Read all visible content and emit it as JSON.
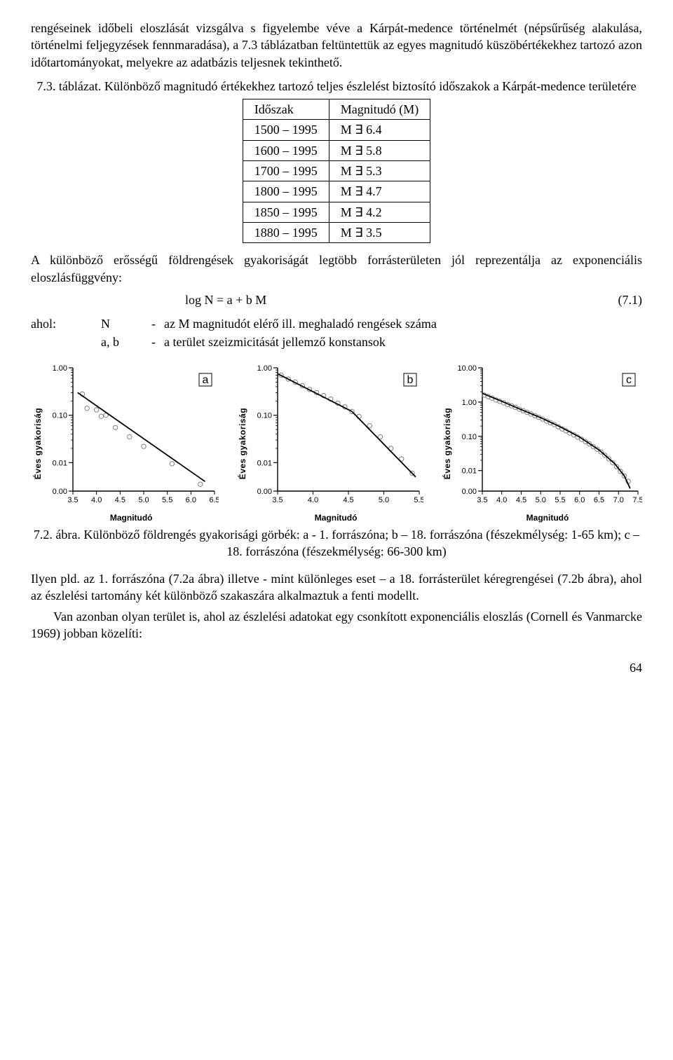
{
  "para1": "rengéseinek időbeli eloszlását vizsgálva s figyelembe véve a Kárpát-medence történelmét (népsűrűség alakulása, történelmi feljegyzések fennmaradása), a 7.3 táblázatban feltüntettük az egyes magnitudó küszöbértékekhez tartozó azon időtartományokat, melyekre az adatbázis teljesnek tekinthető.",
  "table_caption": "7.3. táblázat. Különböző magnitudó értékekhez tartozó teljes észlelést biztosító időszakok a Kárpát-medence területére",
  "table": {
    "headers": [
      "Időszak",
      "Magnitudó (M)"
    ],
    "rows": [
      [
        "1500 – 1995",
        "M ∃ 6.4"
      ],
      [
        "1600 – 1995",
        "M ∃ 5.8"
      ],
      [
        "1700 – 1995",
        "M ∃ 5.3"
      ],
      [
        "1800 – 1995",
        "M ∃ 4.7"
      ],
      [
        "1850 – 1995",
        "M ∃ 4.2"
      ],
      [
        "1880 – 1995",
        "M ∃ 3.5"
      ]
    ]
  },
  "para2": "A különböző erősségű földrengések gyakoriságát legtöbb forrásterületen jól reprezentálja az exponenciális eloszlásfüggvény:",
  "equation": {
    "text": "log N = a + b M",
    "num": "(7.1)"
  },
  "where": {
    "lead": "ahol:",
    "rows": [
      {
        "sym": "N",
        "dash": "-",
        "desc": "az M magnitudót elérő ill. meghaladó rengések száma"
      },
      {
        "sym": "a, b",
        "dash": "-",
        "desc": "a terület szeizmicitását jellemző konstansok"
      }
    ]
  },
  "charts": {
    "ylabel": "Éves gyakoriság",
    "xlabel": "Magnitudó",
    "axis_color": "#000000",
    "background": "#ffffff",
    "point_stroke": "#808080",
    "point_fill": "none",
    "point_r": 3.2,
    "line_color": "#000000",
    "line_width": 1.8,
    "panel_box_stroke": "#000000",
    "a": {
      "label": "a",
      "x_ticks": [
        3.5,
        4.0,
        4.5,
        5.0,
        5.5,
        6.0,
        6.5
      ],
      "y_ticks_log": [
        1.0,
        0.1,
        0.01,
        0.0
      ],
      "y_labels": [
        "1.00",
        "0.10",
        "0.01",
        "0.00"
      ],
      "points": [
        [
          3.7,
          0.28
        ],
        [
          3.8,
          0.14
        ],
        [
          4.0,
          0.13
        ],
        [
          4.1,
          0.095
        ],
        [
          4.2,
          0.1
        ],
        [
          4.4,
          0.055
        ],
        [
          4.7,
          0.035
        ],
        [
          5.0,
          0.022
        ],
        [
          5.6,
          0.0095
        ],
        [
          6.2,
          0.0035
        ]
      ],
      "line": [
        [
          3.6,
          0.3
        ],
        [
          6.3,
          0.004
        ]
      ]
    },
    "b": {
      "label": "b",
      "x_ticks": [
        3.5,
        4.0,
        4.5,
        5.0,
        5.5
      ],
      "y_ticks_log": [
        1.0,
        0.1,
        0.01,
        0.0
      ],
      "y_labels": [
        "1.00",
        "0.10",
        "0.01",
        "0.00"
      ],
      "points": [
        [
          3.55,
          0.7
        ],
        [
          3.65,
          0.58
        ],
        [
          3.75,
          0.5
        ],
        [
          3.85,
          0.42
        ],
        [
          3.95,
          0.35
        ],
        [
          4.05,
          0.3
        ],
        [
          4.15,
          0.26
        ],
        [
          4.25,
          0.22
        ],
        [
          4.35,
          0.18
        ],
        [
          4.45,
          0.15
        ],
        [
          4.55,
          0.12
        ],
        [
          4.65,
          0.094
        ],
        [
          4.8,
          0.06
        ],
        [
          4.95,
          0.035
        ],
        [
          5.1,
          0.02
        ],
        [
          5.25,
          0.012
        ],
        [
          5.4,
          0.006
        ]
      ],
      "line_segments": [
        [
          [
            3.5,
            0.75
          ],
          [
            4.55,
            0.12
          ]
        ],
        [
          [
            4.55,
            0.12
          ],
          [
            5.45,
            0.005
          ]
        ]
      ]
    },
    "c": {
      "label": "c",
      "x_ticks": [
        3.5,
        4.0,
        4.5,
        5.0,
        5.5,
        6.0,
        6.5,
        7.0,
        7.5
      ],
      "y_ticks_log": [
        10.0,
        1.0,
        0.1,
        0.01,
        0.0
      ],
      "y_labels": [
        "10.00",
        "1.00",
        "0.10",
        "0.01",
        "0.00"
      ],
      "points": [
        [
          3.55,
          1.6
        ],
        [
          3.65,
          1.45
        ],
        [
          3.75,
          1.3
        ],
        [
          3.85,
          1.15
        ],
        [
          3.95,
          1.05
        ],
        [
          4.05,
          0.95
        ],
        [
          4.15,
          0.85
        ],
        [
          4.25,
          0.78
        ],
        [
          4.35,
          0.7
        ],
        [
          4.45,
          0.62
        ],
        [
          4.55,
          0.56
        ],
        [
          4.65,
          0.5
        ],
        [
          4.75,
          0.45
        ],
        [
          4.85,
          0.4
        ],
        [
          4.95,
          0.36
        ],
        [
          5.05,
          0.32
        ],
        [
          5.15,
          0.28
        ],
        [
          5.25,
          0.25
        ],
        [
          5.35,
          0.22
        ],
        [
          5.45,
          0.19
        ],
        [
          5.55,
          0.165
        ],
        [
          5.65,
          0.145
        ],
        [
          5.75,
          0.125
        ],
        [
          5.85,
          0.11
        ],
        [
          5.95,
          0.095
        ],
        [
          6.05,
          0.082
        ],
        [
          6.15,
          0.07
        ],
        [
          6.25,
          0.06
        ],
        [
          6.35,
          0.05
        ],
        [
          6.45,
          0.042
        ],
        [
          6.55,
          0.035
        ],
        [
          6.65,
          0.028
        ],
        [
          6.75,
          0.022
        ],
        [
          6.85,
          0.017
        ],
        [
          6.95,
          0.013
        ],
        [
          7.05,
          0.0095
        ],
        [
          7.15,
          0.007
        ],
        [
          7.25,
          0.0048
        ]
      ],
      "curve": [
        [
          3.5,
          1.8
        ],
        [
          4.0,
          1.05
        ],
        [
          4.5,
          0.6
        ],
        [
          5.0,
          0.35
        ],
        [
          5.5,
          0.19
        ],
        [
          6.0,
          0.095
        ],
        [
          6.5,
          0.04
        ],
        [
          6.9,
          0.016
        ],
        [
          7.15,
          0.007
        ],
        [
          7.3,
          0.003
        ]
      ]
    }
  },
  "fig_caption": "7.2. ábra. Különböző földrengés gyakorisági görbék: a - 1. forrászóna; b – 18. forrászóna (fészekmélység: 1-65 km); c – 18. forrászóna (fészekmélység: 66-300 km)",
  "para3a": "Ilyen pld. az 1. forrászóna (7.2a ábra) illetve - mint különleges eset – a 18. forrásterület kéregrengései (7.2b ábra), ahol az észlelési tartomány két különböző szakaszára alkalmaztuk a fenti modellt.",
  "para3b": "Van azonban olyan terület is, ahol az észlelési adatokat egy csonkított exponenciális eloszlás (Cornell és Vanmarcke 1969) jobban közelíti:",
  "page_number": "64"
}
